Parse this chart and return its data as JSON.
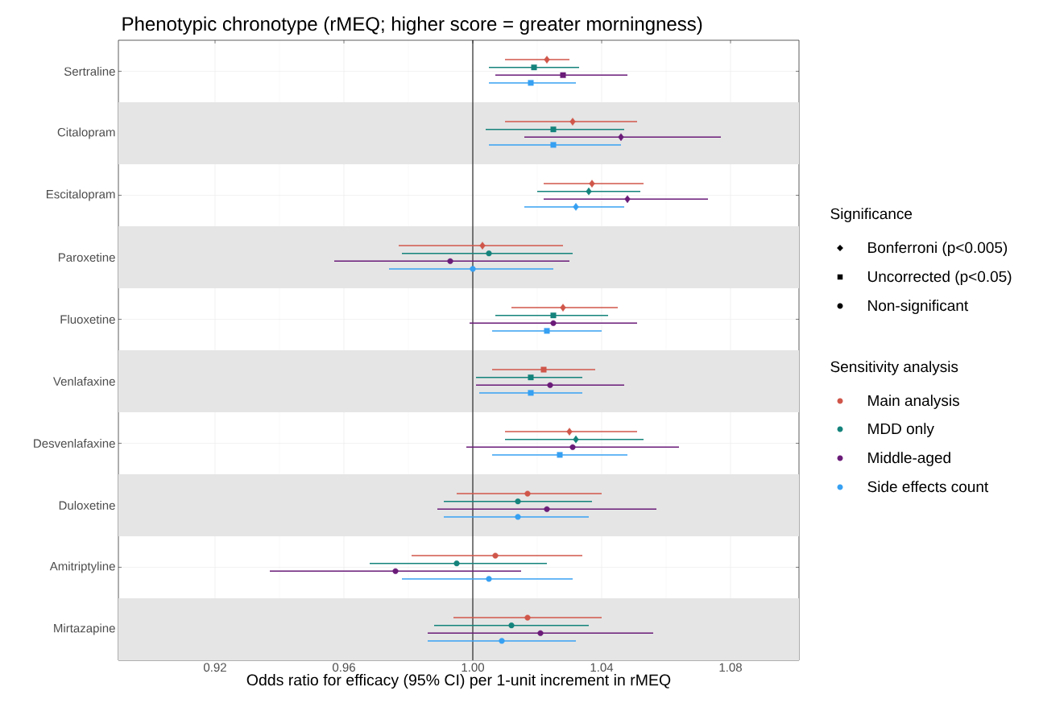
{
  "chart_data": {
    "type": "scatter",
    "orientation": "horizontal",
    "title": "Phenotypic chronotype (rMEQ; higher score = greater morningness)",
    "xlabel": "Odds ratio for efficacy (95% CI) per 1-unit increment in rMEQ",
    "categories": [
      "Sertraline",
      "Citalopram",
      "Escitalopram",
      "Paroxetine",
      "Fluoxetine",
      "Venlafaxine",
      "Desvenlafaxine",
      "Duloxetine",
      "Amitriptyline",
      "Mirtazapine"
    ],
    "xlim": [
      0.89,
      1.10125
    ],
    "xticks": [
      0.92,
      0.96,
      {
        "value": 1,
        "label": "1.00"
      },
      1.04,
      1.08
    ],
    "grid": true,
    "legend": "right",
    "legend_title": [
      "Significance",
      "Sensitivity analysis"
    ],
    "ref_lines": [
      {
        "axis": "x",
        "value": 1,
        "color": "#000000"
      }
    ],
    "bands": [
      {
        "axis": "y",
        "from": "Citalopram",
        "to": "Citalopram",
        "color": "#e5e5e5"
      },
      {
        "axis": "y",
        "from": "Paroxetine",
        "to": "Paroxetine",
        "color": "#e5e5e5"
      },
      {
        "axis": "y",
        "from": "Venlafaxine",
        "to": "Venlafaxine",
        "color": "#e5e5e5"
      },
      {
        "axis": "y",
        "from": "Duloxetine",
        "to": "Duloxetine",
        "color": "#e5e5e5"
      },
      {
        "axis": "y",
        "from": "Mirtazapine",
        "to": "Mirtazapine",
        "color": "#e5e5e5"
      }
    ],
    "series": [
      {
        "name": "Main analysis",
        "color": "#d0564a",
        "marker": [
          "diamond",
          "diamond",
          "diamond",
          "diamond",
          "diamond",
          "square",
          "diamond",
          "circle",
          "circle",
          "circle"
        ],
        "values": [
          1.023,
          1.031,
          1.037,
          1.003,
          1.028,
          1.022,
          1.03,
          1.017,
          1.007,
          1.017
        ],
        "errors": [
          [
            1.01,
            1.03
          ],
          [
            1.01,
            1.051
          ],
          [
            1.022,
            1.053
          ],
          [
            0.977,
            1.028
          ],
          [
            1.012,
            1.045
          ],
          [
            1.006,
            1.038
          ],
          [
            1.01,
            1.051
          ],
          [
            0.995,
            1.04
          ],
          [
            0.981,
            1.034
          ],
          [
            0.994,
            1.04
          ]
        ]
      },
      {
        "name": "MDD only",
        "color": "#14837b",
        "marker": [
          "square",
          "square",
          "diamond",
          "circle",
          "square",
          "square",
          "diamond",
          "circle",
          "circle",
          "circle"
        ],
        "values": [
          1.019,
          1.025,
          1.036,
          1.005,
          1.025,
          1.018,
          1.032,
          1.014,
          0.995,
          1.012
        ],
        "errors": [
          [
            1.005,
            1.033
          ],
          [
            1.004,
            1.047
          ],
          [
            1.02,
            1.052
          ],
          [
            0.978,
            1.031
          ],
          [
            1.007,
            1.042
          ],
          [
            1.001,
            1.034
          ],
          [
            1.01,
            1.053
          ],
          [
            0.991,
            1.037
          ],
          [
            0.968,
            1.023
          ],
          [
            0.988,
            1.036
          ]
        ]
      },
      {
        "name": "Middle-aged",
        "color": "#6a1b78",
        "marker": [
          "square",
          "diamond",
          "diamond",
          "circle",
          "circle",
          "circle",
          "circle",
          "circle",
          "circle",
          "circle"
        ],
        "values": [
          1.028,
          1.046,
          1.048,
          0.993,
          1.025,
          1.024,
          1.031,
          1.023,
          0.976,
          1.021
        ],
        "errors": [
          [
            1.007,
            1.048
          ],
          [
            1.016,
            1.077
          ],
          [
            1.022,
            1.073
          ],
          [
            0.957,
            1.03
          ],
          [
            0.999,
            1.051
          ],
          [
            1.001,
            1.047
          ],
          [
            0.998,
            1.064
          ],
          [
            0.989,
            1.057
          ],
          [
            0.937,
            1.015
          ],
          [
            0.986,
            1.056
          ]
        ]
      },
      {
        "name": "Side effects count",
        "color": "#36a0f2",
        "marker": [
          "square",
          "square",
          "diamond",
          "circle",
          "square",
          "square",
          "square",
          "circle",
          "circle",
          "circle"
        ],
        "values": [
          1.018,
          1.025,
          1.032,
          1.0,
          1.023,
          1.018,
          1.027,
          1.014,
          1.005,
          1.009
        ],
        "errors": [
          [
            1.005,
            1.032
          ],
          [
            1.005,
            1.046
          ],
          [
            1.016,
            1.047
          ],
          [
            0.974,
            1.025
          ],
          [
            1.006,
            1.04
          ],
          [
            1.002,
            1.034
          ],
          [
            1.006,
            1.048
          ],
          [
            0.991,
            1.036
          ],
          [
            0.978,
            1.031
          ],
          [
            0.986,
            1.032
          ]
        ]
      },
      {
        "name": "Bonferroni (p<0.005)",
        "color": "#000000",
        "marker": "diamond",
        "values": [
          null,
          null,
          null,
          null,
          null,
          null,
          null,
          null,
          null,
          null
        ]
      },
      {
        "name": "Uncorrected (p<0.05)",
        "color": "#000000",
        "marker": "square",
        "values": [
          null,
          null,
          null,
          null,
          null,
          null,
          null,
          null,
          null,
          null
        ]
      },
      {
        "name": "Non-significant",
        "color": "#000000",
        "marker": "circle",
        "values": [
          null,
          null,
          null,
          null,
          null,
          null,
          null,
          null,
          null,
          null
        ]
      }
    ]
  }
}
